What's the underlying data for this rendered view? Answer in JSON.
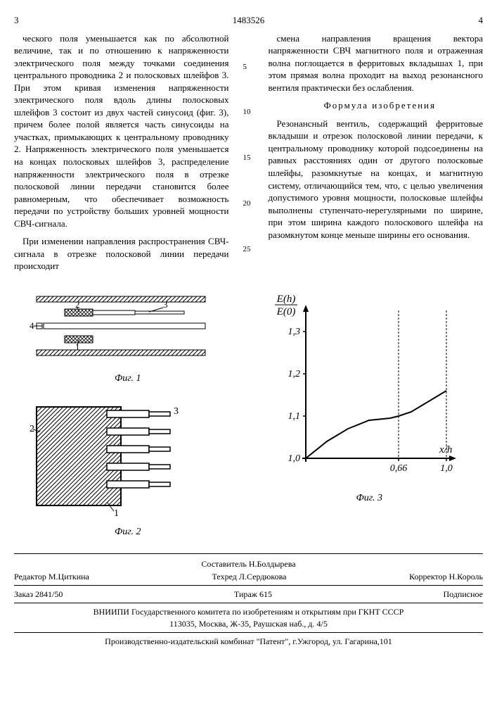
{
  "header": {
    "page_left": "3",
    "doc_number": "1483526",
    "page_right": "4"
  },
  "line_numbers": [
    "5",
    "10",
    "15",
    "20",
    "25"
  ],
  "col_left": {
    "p1": "ческого поля уменьшается как по абсолютной величине, так и по отношению к напряженности электрического поля между точками соединения центрального проводника 2 и полосковых шлейфов 3. При этом кривая изменения напряженности электрического поля вдоль длины полосковых шлейфов 3 состоит из двух частей синусоид (фиг. 3), причем более полой является часть синусоиды на участках, примыкающих к центральному проводнику 2. Напряженность электрического поля уменьшается на концах полосковых шлейфов 3, распределение напряженности электрического поля в отрезке полосковой линии передачи становится более равномерным, что обеспечивает возможность передачи по устройству больших уровней мощности СВЧ-сигнала.",
    "p2": "При изменении направления распространения СВЧ-сигнала в отрезке полосковой линии передачи происходит"
  },
  "col_right": {
    "p1": "смена направления вращения вектора напряженности СВЧ магнитного поля и отраженная волна поглощается в ферритовых вкладышах 1, при этом прямая волна проходит на выход резонансного вентиля практически без ослабления.",
    "formula_title": "Формула изобретения",
    "p2": "Резонансный вентиль, содержащий ферритовые вкладыши и отрезок полосковой линии передачи, к центральному проводнику которой подсоединены на равных расстояниях один от другого полосковые шлейфы, разомкнутые на концах, и магнитную систему, отличающийся тем, что, с целью увеличения допустимого уровня мощности, полосковые шлейфы выполнены ступенчато-нерегулярными по ширине, при этом ширина каждого полоскового шлейфа на разомкнутом конце меньше ширины его основания."
  },
  "fig1": {
    "caption": "Фиг. 1",
    "labels": {
      "n1": "1",
      "n2": "2",
      "n3": "3",
      "n4": "4"
    }
  },
  "fig2": {
    "caption": "Фиг. 2",
    "labels": {
      "n1": "1",
      "n2": "2",
      "n3": "3"
    }
  },
  "fig3": {
    "caption": "Фиг. 3",
    "ylabel_top": "E(h)",
    "ylabel_bot": "E(0)",
    "xlabel": "x/h",
    "ylim": [
      1.0,
      1.35
    ],
    "yticks": [
      "1,0",
      "1,1",
      "1,2",
      "1,3"
    ],
    "xticks": [
      "0,66",
      "1,0"
    ],
    "curve": [
      {
        "x": 0.0,
        "y": 1.0
      },
      {
        "x": 0.15,
        "y": 1.04
      },
      {
        "x": 0.3,
        "y": 1.07
      },
      {
        "x": 0.45,
        "y": 1.09
      },
      {
        "x": 0.6,
        "y": 1.095
      },
      {
        "x": 0.66,
        "y": 1.1
      },
      {
        "x": 0.75,
        "y": 1.11
      },
      {
        "x": 0.85,
        "y": 1.13
      },
      {
        "x": 0.95,
        "y": 1.15
      },
      {
        "x": 1.0,
        "y": 1.16
      }
    ],
    "vlines": [
      0.66,
      1.0
    ],
    "colors": {
      "axis": "#000000",
      "curve": "#000000",
      "bg": "#ffffff"
    },
    "line_width": 2
  },
  "footer": {
    "compiler": "Составитель Н.Болдырева",
    "editor": "Редактор М.Циткина",
    "tech": "Техред Л.Сердюкова",
    "corrector": "Корректор Н.Король",
    "order": "Заказ 2841/50",
    "tirage": "Тираж 615",
    "subscription": "Подписное",
    "org": "ВНИИПИ Государственного комитета по изобретениям и открытиям при ГКНТ СССР",
    "address": "113035, Москва, Ж-35, Раушская наб., д. 4/5",
    "printer": "Производственно-издательский комбинат \"Патент\", г.Ужгород, ул. Гагарина,101"
  }
}
